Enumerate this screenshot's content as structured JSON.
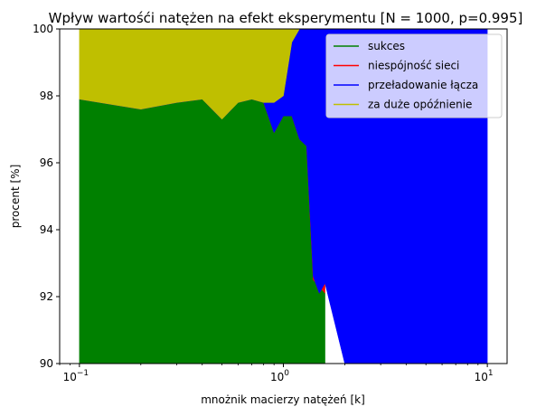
{
  "chart_data": {
    "type": "area",
    "title": "Wpływ wartośći natężen na efekt eksperymentu [N = 1000, p=0.995]",
    "xlabel": "mnożnik macierzy natężeń [k]",
    "ylabel": "procent [%]",
    "xscale": "log",
    "xlim": [
      0.08,
      12.5
    ],
    "ylim": [
      90,
      100
    ],
    "xticks": [
      {
        "value": 0.1,
        "base": "10",
        "exp": "−1"
      },
      {
        "value": 1,
        "base": "10",
        "exp": "0"
      },
      {
        "value": 10,
        "base": "10",
        "exp": "1"
      }
    ],
    "yticks": [
      "90",
      "92",
      "94",
      "96",
      "98",
      "100"
    ],
    "legend_position": "top-right",
    "series": [
      {
        "name": "sukces",
        "color": "#008000",
        "x": [
          0.1,
          0.2,
          0.3,
          0.4,
          0.5,
          0.6,
          0.7,
          0.8,
          0.9,
          1.0,
          1.1,
          1.2,
          1.3,
          1.4,
          1.5,
          1.6
        ],
        "cumulative": [
          97.9,
          97.6,
          97.8,
          97.9,
          97.3,
          97.8,
          97.9,
          97.8,
          96.9,
          97.4,
          97.4,
          96.7,
          96.5,
          92.5,
          92.3,
          92.1
        ]
      },
      {
        "name": "niespójność sieci",
        "color": "#ff0000",
        "x": [
          0.1,
          0.2,
          0.3,
          0.4,
          0.5,
          0.6,
          0.7,
          0.8,
          0.9,
          1.0,
          1.1,
          1.2,
          1.3,
          1.4,
          1.5,
          1.6
        ],
        "cumulative": [
          97.9,
          97.6,
          97.8,
          97.9,
          97.3,
          97.8,
          97.9,
          97.8,
          96.9,
          97.4,
          97.4,
          96.7,
          96.5,
          92.6,
          92.1,
          92.4
        ]
      },
      {
        "name": "przeładowanie łącza",
        "color": "#0000ff",
        "x": [
          0.1,
          0.2,
          0.3,
          0.4,
          0.5,
          0.6,
          0.7,
          0.8,
          0.9,
          1.0,
          1.1,
          1.2,
          1.3,
          1.4,
          1.5,
          1.6,
          2,
          3,
          4,
          5,
          6,
          7,
          8,
          9,
          10
        ],
        "cumulative": [
          97.9,
          97.6,
          97.8,
          97.9,
          97.3,
          97.8,
          97.9,
          97.8,
          97.8,
          98.0,
          99.6,
          100,
          100,
          100,
          100,
          100,
          100,
          100,
          100,
          100,
          100,
          100,
          100,
          100,
          100
        ],
        "base": [
          97.9,
          97.6,
          97.8,
          97.9,
          97.3,
          97.8,
          97.9,
          97.8,
          96.9,
          97.4,
          97.4,
          96.7,
          96.5,
          92.6,
          92.1,
          92.4,
          90,
          90,
          90,
          90,
          90,
          90,
          90,
          90,
          90
        ]
      },
      {
        "name": "za duże opóźnienie",
        "color": "#bfbf00",
        "x": [
          0.1,
          0.2,
          0.3,
          0.4,
          0.5,
          0.6,
          0.7,
          0.8,
          0.9,
          1.0,
          1.1,
          1.2
        ],
        "cumulative": [
          100,
          100,
          100,
          100,
          100,
          100,
          100,
          100,
          100,
          100,
          100,
          100
        ],
        "base": [
          97.9,
          97.6,
          97.8,
          97.9,
          97.3,
          97.8,
          97.9,
          97.8,
          97.8,
          98.0,
          99.6,
          100
        ]
      }
    ]
  }
}
